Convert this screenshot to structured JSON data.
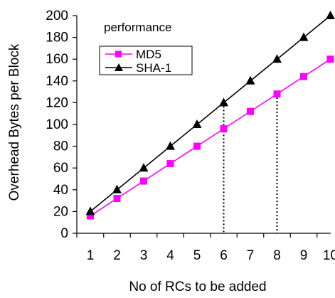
{
  "chart_data": {
    "type": "line",
    "title": "performance",
    "xlabel": "No of RCs to be added",
    "ylabel": "Overhead Bytes per Block",
    "x": [
      1,
      2,
      3,
      4,
      5,
      6,
      7,
      8,
      9,
      10
    ],
    "ylim": [
      0,
      200
    ],
    "yticks": [
      0,
      20,
      40,
      60,
      80,
      100,
      120,
      140,
      160,
      180,
      200
    ],
    "series": [
      {
        "name": "MD5",
        "color": "#ff00ff",
        "marker": "square",
        "values": [
          16,
          32,
          48,
          64,
          80,
          96,
          112,
          128,
          144,
          160
        ]
      },
      {
        "name": "SHA-1",
        "color": "#000000",
        "marker": "triangle",
        "values": [
          20,
          40,
          60,
          80,
          100,
          120,
          140,
          160,
          180,
          200
        ]
      }
    ],
    "dotted_markers_at_x": [
      6,
      8
    ],
    "grid": false,
    "legend_position": "top-left"
  }
}
